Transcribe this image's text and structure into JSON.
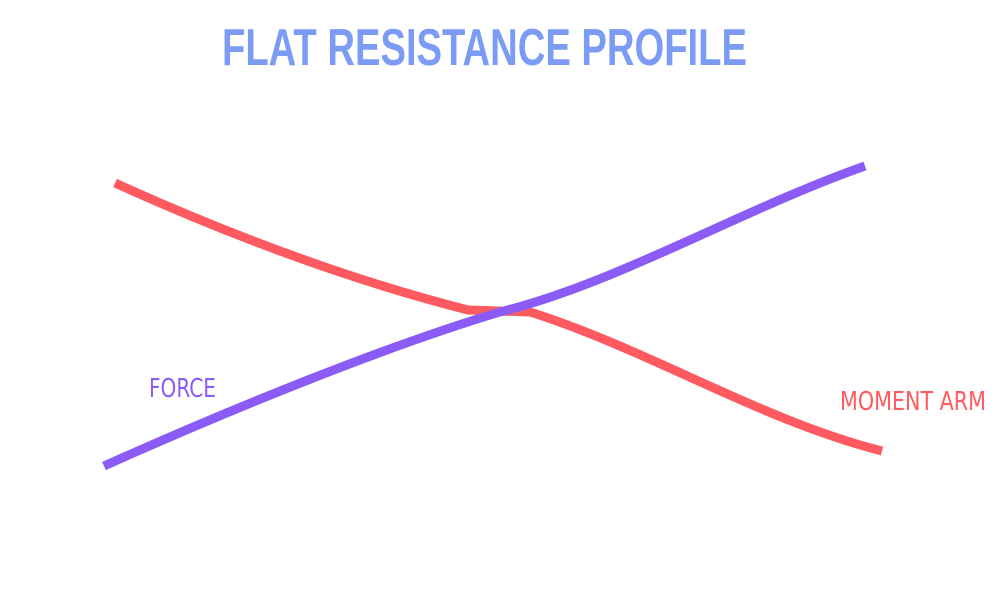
{
  "header": {
    "title": "FLAT RESISTANCE PROFILE"
  },
  "labels": {
    "force": "FORCE",
    "moment_arm": "MOMENT ARM"
  }
}
